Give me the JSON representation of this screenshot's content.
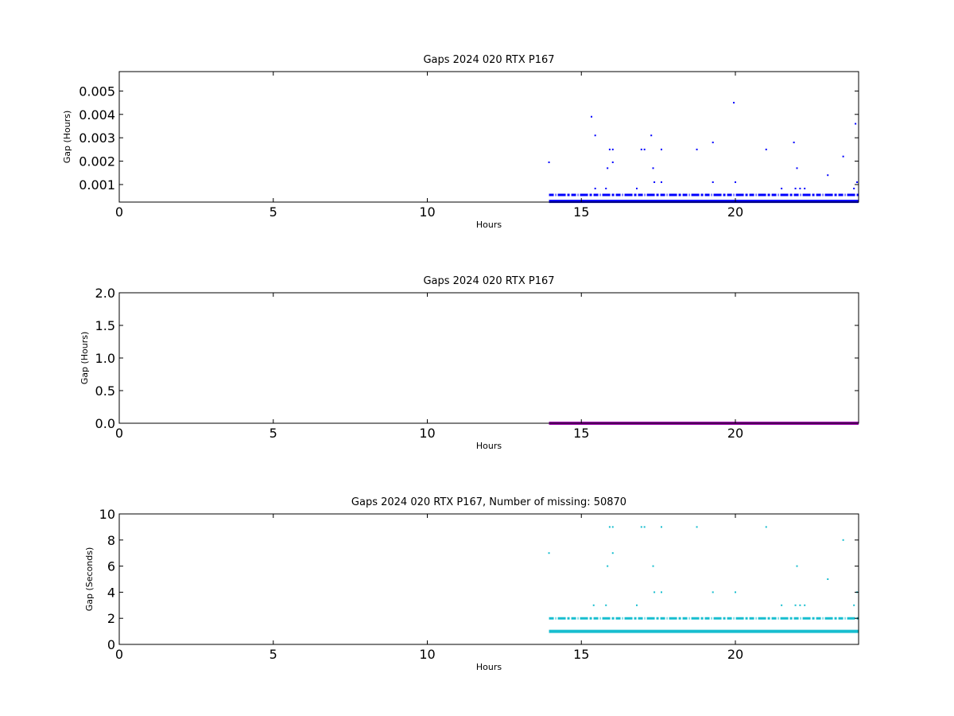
{
  "chart_data": [
    {
      "type": "scatter",
      "title": "Gaps 2024 020 RTX  P167",
      "xlabel": "Hours",
      "ylabel": "Gap (Hours)",
      "xlim": [
        0,
        24
      ],
      "ylim": [
        0.00025,
        0.00583
      ],
      "xticks": [
        "0",
        "5",
        "10",
        "15",
        "20"
      ],
      "xtick_values": [
        0,
        5,
        10,
        15,
        20
      ],
      "yticks": [
        "0.001",
        "0.002",
        "0.003",
        "0.004",
        "0.005"
      ],
      "ytick_values": [
        0.001,
        0.002,
        0.003,
        0.004,
        0.005
      ],
      "grid": false,
      "color": "#0000ff",
      "bands": [
        {
          "y": 0.000278,
          "x_start": 13.95,
          "x_end": 24.0,
          "dense": true
        },
        {
          "y": 0.000556,
          "x_start": 13.95,
          "x_end": 24.0,
          "dense": false
        }
      ],
      "points": [
        {
          "x": 13.95,
          "y": 0.00195
        },
        {
          "x": 15.33,
          "y": 0.0039
        },
        {
          "x": 15.45,
          "y": 0.0031
        },
        {
          "x": 15.45,
          "y": 0.00083
        },
        {
          "x": 15.8,
          "y": 0.00083
        },
        {
          "x": 15.85,
          "y": 0.0017
        },
        {
          "x": 15.92,
          "y": 0.0025
        },
        {
          "x": 16.02,
          "y": 0.0025
        },
        {
          "x": 16.02,
          "y": 0.00195
        },
        {
          "x": 16.8,
          "y": 0.00083
        },
        {
          "x": 16.95,
          "y": 0.0025
        },
        {
          "x": 17.05,
          "y": 0.0025
        },
        {
          "x": 17.27,
          "y": 0.0031
        },
        {
          "x": 17.33,
          "y": 0.0017
        },
        {
          "x": 17.37,
          "y": 0.0011
        },
        {
          "x": 17.6,
          "y": 0.0025
        },
        {
          "x": 17.6,
          "y": 0.0011
        },
        {
          "x": 18.75,
          "y": 0.0025
        },
        {
          "x": 19.27,
          "y": 0.0028
        },
        {
          "x": 19.27,
          "y": 0.0011
        },
        {
          "x": 19.95,
          "y": 0.0045
        },
        {
          "x": 20.0,
          "y": 0.0011
        },
        {
          "x": 21.0,
          "y": 0.0025
        },
        {
          "x": 21.5,
          "y": 0.00083
        },
        {
          "x": 21.9,
          "y": 0.0028
        },
        {
          "x": 21.95,
          "y": 0.00083
        },
        {
          "x": 22.0,
          "y": 0.0017
        },
        {
          "x": 22.1,
          "y": 0.00083
        },
        {
          "x": 22.25,
          "y": 0.00083
        },
        {
          "x": 23.0,
          "y": 0.0014
        },
        {
          "x": 23.5,
          "y": 0.0022
        },
        {
          "x": 23.85,
          "y": 0.00083
        },
        {
          "x": 23.9,
          "y": 0.0036
        },
        {
          "x": 23.95,
          "y": 0.0011
        }
      ]
    },
    {
      "type": "scatter",
      "title": "Gaps 2024 020 RTX  P167",
      "xlabel": "Hours",
      "ylabel": "Gap (Hours)",
      "xlim": [
        0,
        24
      ],
      "ylim": [
        0,
        2.0
      ],
      "xticks": [
        "0",
        "5",
        "10",
        "15",
        "20"
      ],
      "xtick_values": [
        0,
        5,
        10,
        15,
        20
      ],
      "yticks": [
        "0.0",
        "0.5",
        "1.0",
        "1.5",
        "2.0"
      ],
      "ytick_values": [
        0,
        0.5,
        1.0,
        1.5,
        2.0
      ],
      "grid": false,
      "color": "#9900aa",
      "bands": [
        {
          "y": 0.0003,
          "x_start": 13.95,
          "x_end": 24.0,
          "dense": true
        }
      ],
      "points": []
    },
    {
      "type": "scatter",
      "title": "Gaps 2024 020 RTX  P167, Number of missing: 50870",
      "xlabel": "Hours",
      "ylabel": "Gap (Seconds)",
      "xlim": [
        0,
        24
      ],
      "ylim": [
        0,
        10
      ],
      "xticks": [
        "0",
        "5",
        "10",
        "15",
        "20"
      ],
      "xtick_values": [
        0,
        5,
        10,
        15,
        20
      ],
      "yticks": [
        "0",
        "2",
        "4",
        "6",
        "8",
        "10"
      ],
      "ytick_values": [
        0,
        2,
        4,
        6,
        8,
        10
      ],
      "grid": false,
      "color": "#17becf",
      "bands": [
        {
          "y": 1,
          "x_start": 13.95,
          "x_end": 24.0,
          "dense": true
        },
        {
          "y": 2,
          "x_start": 13.95,
          "x_end": 24.0,
          "dense": false
        }
      ],
      "points": [
        {
          "x": 13.95,
          "y": 7
        },
        {
          "x": 15.4,
          "y": 3
        },
        {
          "x": 15.8,
          "y": 3
        },
        {
          "x": 15.85,
          "y": 6
        },
        {
          "x": 15.92,
          "y": 9
        },
        {
          "x": 16.02,
          "y": 9
        },
        {
          "x": 16.02,
          "y": 7
        },
        {
          "x": 16.8,
          "y": 3
        },
        {
          "x": 16.95,
          "y": 9
        },
        {
          "x": 17.05,
          "y": 9
        },
        {
          "x": 17.33,
          "y": 6
        },
        {
          "x": 17.37,
          "y": 4
        },
        {
          "x": 17.6,
          "y": 9
        },
        {
          "x": 17.6,
          "y": 4
        },
        {
          "x": 18.75,
          "y": 9
        },
        {
          "x": 19.27,
          "y": 4
        },
        {
          "x": 20.0,
          "y": 4
        },
        {
          "x": 21.0,
          "y": 9
        },
        {
          "x": 21.5,
          "y": 3
        },
        {
          "x": 21.95,
          "y": 3
        },
        {
          "x": 22.0,
          "y": 6
        },
        {
          "x": 22.1,
          "y": 3
        },
        {
          "x": 22.25,
          "y": 3
        },
        {
          "x": 23.0,
          "y": 5
        },
        {
          "x": 23.5,
          "y": 8
        },
        {
          "x": 23.85,
          "y": 3
        },
        {
          "x": 23.95,
          "y": 4
        }
      ]
    }
  ]
}
